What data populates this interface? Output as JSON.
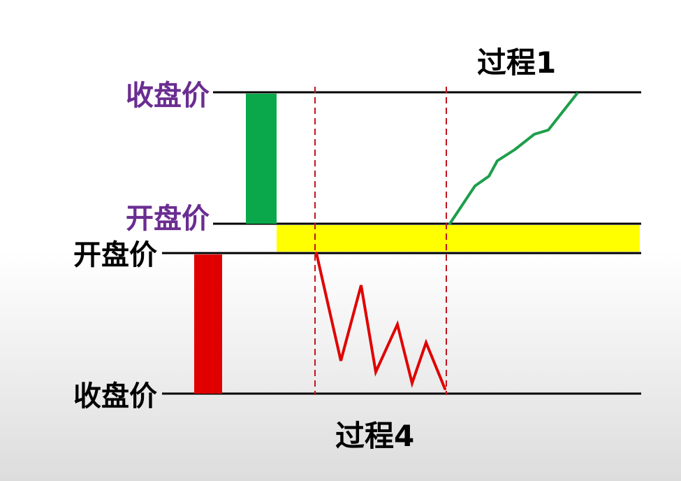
{
  "labels": {
    "top_close": "收盘价",
    "top_open": "开盘价",
    "bottom_open": "开盘价",
    "bottom_close": "收盘价"
  },
  "process_titles": {
    "upper": "过程1",
    "lower": "过程4"
  },
  "colors": {
    "upper_label": "#6a2d91",
    "lower_label": "#000000",
    "green_candle": "#0aa84a",
    "red_candle": "#e00000",
    "gap_fill": "#ffff00",
    "up_path": "#1e9e4a",
    "down_path": "#e00000",
    "dashed_line": "#c0141e",
    "level_line": "#000000"
  }
}
